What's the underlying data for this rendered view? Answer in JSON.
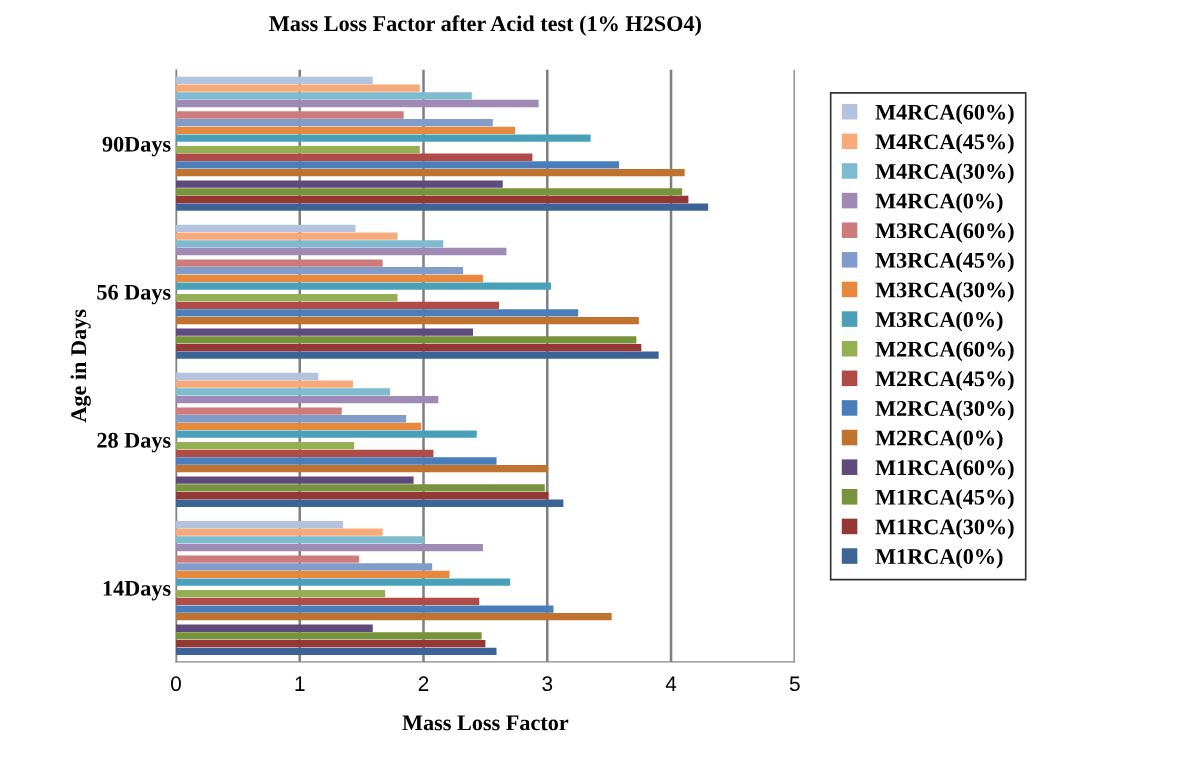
{
  "chart_data": {
    "type": "bar",
    "orientation": "horizontal",
    "title": "Mass Loss Factor after Acid test (1% H2SO4)",
    "xlabel": "Mass Loss Factor",
    "ylabel": "Age in Days",
    "categories": [
      "90Days",
      "56 Days",
      "28 Days",
      "14Days"
    ],
    "xlim": [
      0,
      5
    ],
    "xticks": [
      0,
      1,
      2,
      3,
      4,
      5
    ],
    "grid": "x",
    "legend": "right",
    "series": [
      {
        "name": "M1RCA(0%)",
        "color": "#3c6496",
        "values": [
          4.3,
          3.9,
          3.13,
          2.59
        ]
      },
      {
        "name": "M1RCA(30%)",
        "color": "#953735",
        "values": [
          4.14,
          3.76,
          3.01,
          2.5
        ]
      },
      {
        "name": "M1RCA(45%)",
        "color": "#77933c",
        "values": [
          4.09,
          3.72,
          2.98,
          2.47
        ]
      },
      {
        "name": "M1RCA(60%)",
        "color": "#604a7b",
        "values": [
          2.64,
          2.4,
          1.92,
          1.59
        ]
      },
      {
        "name": "M2RCA(0%)",
        "color": "#c0722f",
        "values": [
          4.11,
          3.74,
          3.0,
          3.52
        ]
      },
      {
        "name": "M2RCA(30%)",
        "color": "#4a7ebb",
        "values": [
          3.58,
          3.25,
          2.59,
          3.05
        ]
      },
      {
        "name": "M2RCA(45%)",
        "color": "#b14b48",
        "values": [
          2.88,
          2.61,
          2.08,
          2.45
        ]
      },
      {
        "name": "M2RCA(60%)",
        "color": "#94b052",
        "values": [
          1.97,
          1.79,
          1.44,
          1.69
        ]
      },
      {
        "name": "M3RCA(0%)",
        "color": "#4aa0b8",
        "values": [
          3.35,
          3.03,
          2.43,
          2.7
        ]
      },
      {
        "name": "M3RCA(30%)",
        "color": "#e8883c",
        "values": [
          2.74,
          2.48,
          1.98,
          2.21
        ]
      },
      {
        "name": "M3RCA(45%)",
        "color": "#7f9ccb",
        "values": [
          2.56,
          2.32,
          1.86,
          2.07
        ]
      },
      {
        "name": "M3RCA(60%)",
        "color": "#cd7c7b",
        "values": [
          1.84,
          1.67,
          1.34,
          1.48
        ]
      },
      {
        "name": "M4RCA(0%)",
        "color": "#9e8ab5",
        "values": [
          2.93,
          2.67,
          2.12,
          2.48
        ]
      },
      {
        "name": "M4RCA(30%)",
        "color": "#7fbacf",
        "values": [
          2.39,
          2.16,
          1.73,
          2.01
        ]
      },
      {
        "name": "M4RCA(45%)",
        "color": "#f6aa7a",
        "values": [
          1.97,
          1.79,
          1.43,
          1.67
        ]
      },
      {
        "name": "M4RCA(60%)",
        "color": "#b3c3df",
        "values": [
          1.59,
          1.45,
          1.15,
          1.35
        ]
      }
    ]
  }
}
